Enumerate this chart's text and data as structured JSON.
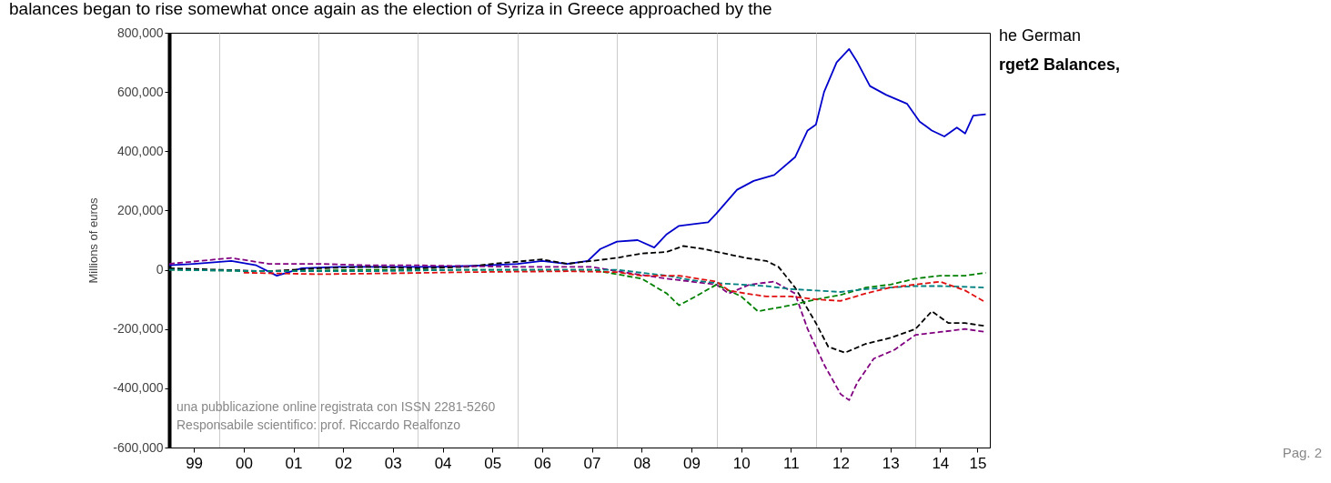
{
  "chart_data": {
    "type": "line",
    "ylabel": "Millions of euros",
    "annotations": [
      "balances began to rise somewhat once again as the election of Syriza in Greece approached by the",
      "he German",
      "rget2 Balances,",
      "una pubblicazione online registrata con ISSN 2281-5260",
      "Responsabile scientifico: prof. Riccardo Realfonzo",
      "Pag. 2"
    ],
    "xlim": [
      "1999-01",
      "2015-07"
    ],
    "xticks": [
      {
        "value": "1999-07",
        "label": "99"
      },
      {
        "value": "2000-01",
        "label": null
      },
      {
        "value": "2000-07",
        "label": "00"
      },
      {
        "value": "2001-07",
        "label": "01"
      },
      {
        "value": "2002-01",
        "label": null
      },
      {
        "value": "2002-07",
        "label": "02"
      },
      {
        "value": "2003-07",
        "label": "03"
      },
      {
        "value": "2004-01",
        "label": null
      },
      {
        "value": "2004-07",
        "label": "04"
      },
      {
        "value": "2005-07",
        "label": "05"
      },
      {
        "value": "2006-01",
        "label": null
      },
      {
        "value": "2006-07",
        "label": "06"
      },
      {
        "value": "2007-07",
        "label": "07"
      },
      {
        "value": "2008-01",
        "label": null
      },
      {
        "value": "2008-07",
        "label": "08"
      },
      {
        "value": "2009-07",
        "label": "09"
      },
      {
        "value": "2010-01",
        "label": null
      },
      {
        "value": "2010-07",
        "label": "10"
      },
      {
        "value": "2011-07",
        "label": "11"
      },
      {
        "value": "2012-01",
        "label": null
      },
      {
        "value": "2012-07",
        "label": "12"
      },
      {
        "value": "2013-07",
        "label": "13"
      },
      {
        "value": "2014-01",
        "label": null
      },
      {
        "value": "2014-07",
        "label": "14"
      },
      {
        "value": "2015-04",
        "label": "15"
      }
    ],
    "ylim": [
      -600000,
      800000
    ],
    "yticks": [
      {
        "value": -600000,
        "label": "-600,000"
      },
      {
        "value": -400000,
        "label": "-400,000"
      },
      {
        "value": -200000,
        "label": "-200,000"
      },
      {
        "value": 0,
        "label": "0"
      },
      {
        "value": 200000,
        "label": "200,000"
      },
      {
        "value": 400000,
        "label": "400,000"
      },
      {
        "value": 600000,
        "label": "600,000"
      },
      {
        "value": 800000,
        "label": "800,000"
      }
    ],
    "grid": "x",
    "legend": false,
    "marker": "none",
    "series": [
      {
        "color": "#0000cc",
        "line_style": "solid",
        "x": [
          "1999-01",
          "1999-07",
          "2000-04",
          "2000-10",
          "2001-03",
          "2001-09",
          "2002-06",
          "2003-06",
          "2004-06",
          "2005-06",
          "2006-01",
          "2006-07",
          "2007-01",
          "2007-06",
          "2007-09",
          "2008-01",
          "2008-06",
          "2008-10",
          "2009-01",
          "2009-04",
          "2009-11",
          "2010-01",
          "2010-06",
          "2010-10",
          "2011-03",
          "2011-08",
          "2011-11",
          "2012-01",
          "2012-03",
          "2012-06",
          "2012-09",
          "2012-11",
          "2013-02",
          "2013-06",
          "2013-11",
          "2014-02",
          "2014-05",
          "2014-08",
          "2014-11",
          "2015-01",
          "2015-03",
          "2015-06"
        ],
        "values": [
          15000,
          20000,
          30000,
          15000,
          -20000,
          5000,
          10000,
          10000,
          10000,
          15000,
          20000,
          30000,
          20000,
          30000,
          70000,
          95000,
          100000,
          75000,
          120000,
          148000,
          160000,
          190000,
          270000,
          300000,
          320000,
          380000,
          470000,
          490000,
          600000,
          700000,
          745000,
          700000,
          620000,
          590000,
          560000,
          500000,
          470000,
          450000,
          480000,
          460000,
          520000,
          525000
        ]
      },
      {
        "color": "#000000",
        "line_style": "dashed",
        "x": [
          "1999-01",
          "2000-01",
          "2001-01",
          "2002-01",
          "2003-01",
          "2004-01",
          "2005-01",
          "2005-07",
          "2006-07",
          "2007-01",
          "2007-07",
          "2008-01",
          "2008-07",
          "2009-01",
          "2009-05",
          "2009-10",
          "2010-03",
          "2010-08",
          "2011-01",
          "2011-04",
          "2011-08",
          "2012-01",
          "2012-04",
          "2012-08",
          "2013-01",
          "2013-07",
          "2014-01",
          "2014-05",
          "2014-09",
          "2015-01",
          "2015-06"
        ],
        "values": [
          5000,
          0,
          -5000,
          5000,
          10000,
          5000,
          10000,
          20000,
          35000,
          20000,
          30000,
          40000,
          55000,
          60000,
          80000,
          70000,
          55000,
          40000,
          30000,
          10000,
          -60000,
          -180000,
          -260000,
          -280000,
          -250000,
          -230000,
          -200000,
          -140000,
          -180000,
          -180000,
          -190000
        ]
      },
      {
        "color": "#800080",
        "line_style": "dashed",
        "x": [
          "1999-01",
          "2000-04",
          "2001-01",
          "2002-01",
          "2003-01",
          "2004-01",
          "2005-01",
          "2006-01",
          "2007-07",
          "2008-01",
          "2009-01",
          "2010-01",
          "2010-04",
          "2010-09",
          "2011-03",
          "2011-08",
          "2011-11",
          "2012-03",
          "2012-07",
          "2012-09",
          "2012-11",
          "2013-03",
          "2013-08",
          "2014-01",
          "2014-07",
          "2015-01",
          "2015-06"
        ],
        "values": [
          20000,
          40000,
          20000,
          20000,
          15000,
          15000,
          12000,
          10000,
          10000,
          -5000,
          -30000,
          -50000,
          -80000,
          -50000,
          -40000,
          -80000,
          -200000,
          -320000,
          -420000,
          -440000,
          -380000,
          -300000,
          -270000,
          -220000,
          -210000,
          -200000,
          -210000
        ]
      },
      {
        "color": "#008000",
        "line_style": "dashed",
        "x": [
          "1999-01",
          "2001-01",
          "2003-01",
          "2005-01",
          "2007-07",
          "2008-07",
          "2009-01",
          "2009-04",
          "2009-08",
          "2010-01",
          "2010-07",
          "2010-11",
          "2011-07",
          "2012-01",
          "2012-07",
          "2013-01",
          "2013-07",
          "2014-01",
          "2014-07",
          "2015-01",
          "2015-06"
        ],
        "values": [
          0,
          -5000,
          0,
          0,
          0,
          -30000,
          -80000,
          -120000,
          -90000,
          -50000,
          -90000,
          -140000,
          -120000,
          -100000,
          -85000,
          -60000,
          -50000,
          -30000,
          -20000,
          -20000,
          -10000
        ]
      },
      {
        "color": "#008080",
        "line_style": "dashed",
        "x": [
          "1999-01",
          "2001-01",
          "2003-01",
          "2005-01",
          "2007-01",
          "2008-01",
          "2009-01",
          "2009-07",
          "2010-01",
          "2010-07",
          "2011-01",
          "2011-07",
          "2012-01",
          "2012-07",
          "2013-01",
          "2013-07",
          "2014-01",
          "2014-07",
          "2015-06"
        ],
        "values": [
          0,
          -5000,
          -5000,
          0,
          0,
          0,
          -20000,
          -35000,
          -45000,
          -50000,
          -55000,
          -65000,
          -70000,
          -75000,
          -65000,
          -60000,
          -55000,
          -55000,
          -60000
        ]
      },
      {
        "color": "#e01010",
        "line_style": "dashed",
        "x": [
          "2000-07",
          "2002-01",
          "2003-07",
          "2005-01",
          "2007-01",
          "2008-01",
          "2008-07",
          "2009-04",
          "2010-01",
          "2010-04",
          "2010-08",
          "2011-01",
          "2011-07",
          "2012-01",
          "2012-07",
          "2013-01",
          "2013-07",
          "2014-01",
          "2014-07",
          "2015-01",
          "2015-06"
        ],
        "values": [
          -10000,
          -15000,
          -12000,
          -8000,
          -5000,
          -8000,
          -20000,
          -20000,
          -40000,
          -70000,
          -80000,
          -90000,
          -90000,
          -100000,
          -105000,
          -80000,
          -60000,
          -50000,
          -40000,
          -70000,
          -110000
        ]
      }
    ]
  }
}
